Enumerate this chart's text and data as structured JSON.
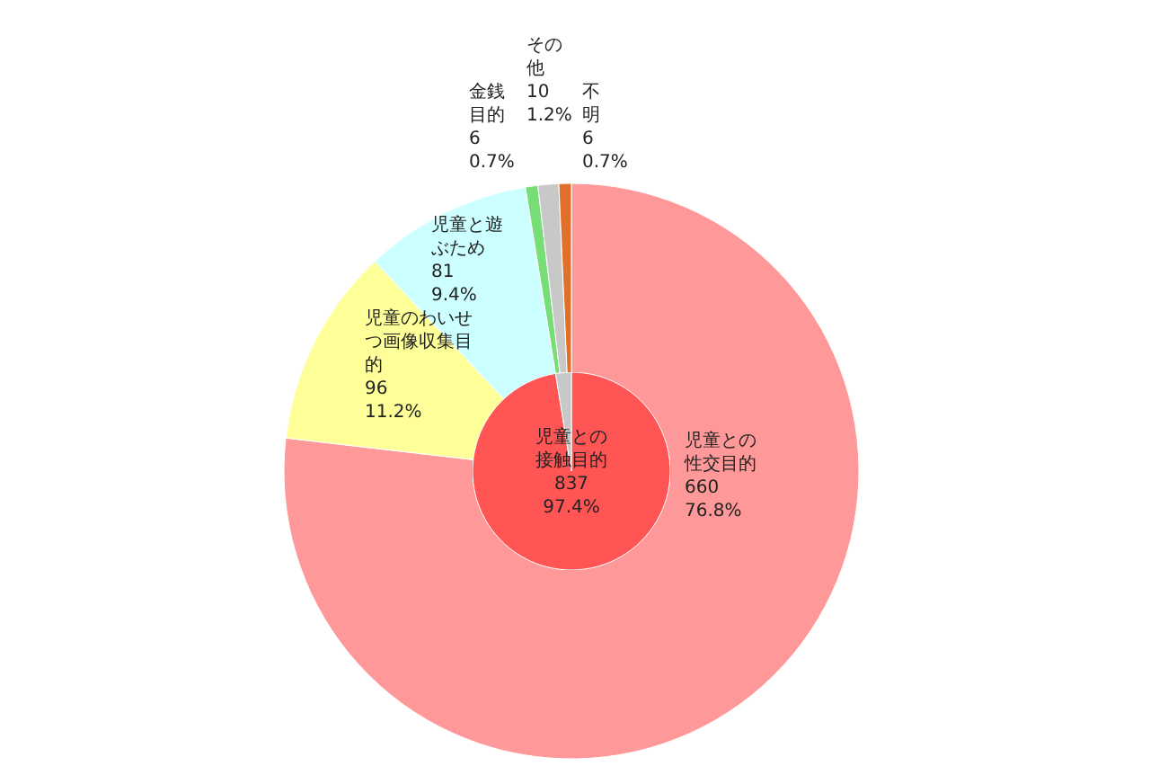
{
  "chart_data": [
    {
      "type": "pie",
      "categories": [
        "児童との性交目的",
        "児童のわいせつ画像収集目的",
        "児童と遊ぶため",
        "金銭目的",
        "その他",
        "不明"
      ],
      "values": [
        660,
        96,
        81,
        6,
        10,
        6
      ],
      "colors": [
        "#ff9999",
        "#ffff99",
        "#ccffff",
        "#77dd77",
        "#c8c8c8",
        "#e0702a"
      ],
      "value_labels": [
        "660\n76.8%",
        "96\n11.2%",
        "81\n9.4%",
        "6\n0.7%",
        "10\n1.2%",
        "6\n0.7%"
      ]
    },
    {
      "type": "pie",
      "categories": [
        "児童との接触目的",
        null
      ],
      "values": [
        837,
        22
      ],
      "colors": [
        "#ff5555",
        "#c8c8c8"
      ],
      "value_labels": [
        "837\n97.4%",
        null
      ]
    }
  ]
}
